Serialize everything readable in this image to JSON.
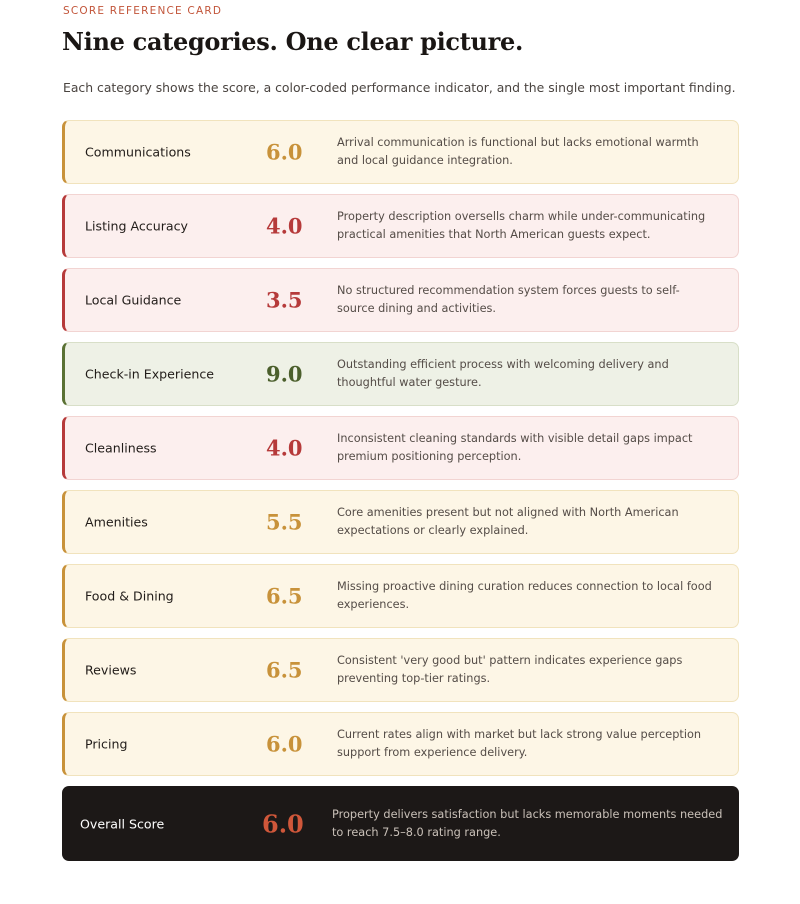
{
  "eyebrow": "SCORE REFERENCE CARD",
  "title": "Nine categories. One clear picture.",
  "intro": "Each category shows the score, a color-coded performance indicator, and the single most important finding.",
  "status_colors": {
    "warn": "#c8923a",
    "bad": "#b63a3a",
    "good": "#4b5f2c",
    "overall": "#d0573a"
  },
  "categories": [
    {
      "name": "Communications",
      "score": "6.0",
      "status": "warn",
      "finding": "Arrival communication is functional but lacks emotional warmth and local guidance integration."
    },
    {
      "name": "Listing Accuracy",
      "score": "4.0",
      "status": "bad",
      "finding": "Property description oversells charm while under-communicating practical amenities that North American guests expect."
    },
    {
      "name": "Local Guidance",
      "score": "3.5",
      "status": "bad",
      "finding": "No structured recommendation system forces guests to self-source dining and activities."
    },
    {
      "name": "Check-in Experience",
      "score": "9.0",
      "status": "good",
      "finding": "Outstanding efficient process with welcoming delivery and thoughtful water gesture."
    },
    {
      "name": "Cleanliness",
      "score": "4.0",
      "status": "bad",
      "finding": "Inconsistent cleaning standards with visible detail gaps impact premium positioning perception."
    },
    {
      "name": "Amenities",
      "score": "5.5",
      "status": "warn",
      "finding": "Core amenities present but not aligned with North American expectations or clearly explained."
    },
    {
      "name": "Food & Dining",
      "score": "6.5",
      "status": "warn",
      "finding": "Missing proactive dining curation reduces connection to local food experiences."
    },
    {
      "name": "Reviews",
      "score": "6.5",
      "status": "warn",
      "finding": "Consistent 'very good but' pattern indicates experience gaps preventing top-tier ratings."
    },
    {
      "name": "Pricing",
      "score": "6.0",
      "status": "warn",
      "finding": "Current rates align with market but lack strong value perception support from experience delivery."
    }
  ],
  "overall": {
    "name": "Overall Score",
    "score": "6.0",
    "finding": "Property delivers satisfaction but lacks memorable moments needed to reach 7.5–8.0 rating range."
  }
}
